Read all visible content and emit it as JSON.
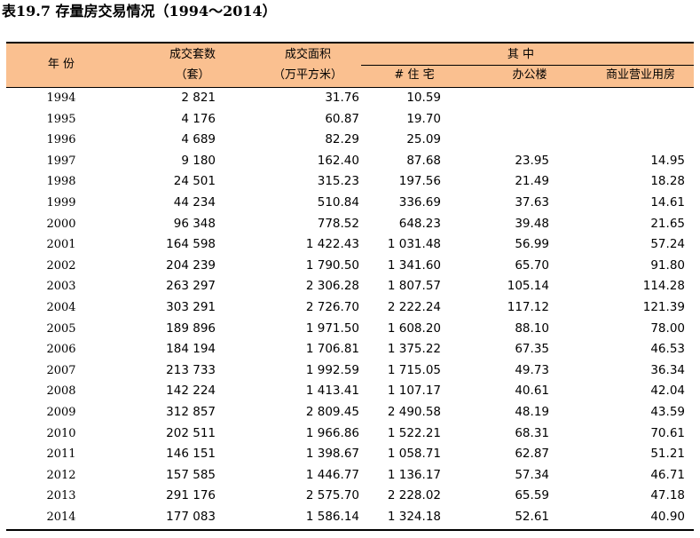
{
  "title": "表19.7  存量房交易情况（1994～2014）",
  "header": {
    "year": "年      份",
    "units_label_1": "成交套数",
    "units_label_2": "（套）",
    "area_label_1": "成交面积",
    "area_label_2": "（万平方米）",
    "group_label": "其      中",
    "residential": "# 住      宅",
    "office": "办公楼",
    "commercial": "商业营业用房"
  },
  "rows": [
    [
      "1994",
      "2 821",
      "31.76",
      "10.59",
      "",
      ""
    ],
    [
      "1995",
      "4 176",
      "60.87",
      "19.70",
      "",
      ""
    ],
    [
      "1996",
      "4 689",
      "82.29",
      "25.09",
      "",
      ""
    ],
    [
      "1997",
      "9 180",
      "162.40",
      "87.68",
      "23.95",
      "14.95"
    ],
    [
      "1998",
      "24 501",
      "315.23",
      "197.56",
      "21.49",
      "18.28"
    ],
    [
      "1999",
      "44 234",
      "510.84",
      "336.69",
      "37.63",
      "14.61"
    ],
    [
      "2000",
      "96 348",
      "778.52",
      "648.23",
      "39.48",
      "21.65"
    ],
    [
      "2001",
      "164 598",
      "1 422.43",
      "1 031.48",
      "56.99",
      "57.24"
    ],
    [
      "2002",
      "204 239",
      "1 790.50",
      "1 341.60",
      "65.70",
      "91.80"
    ],
    [
      "2003",
      "263 297",
      "2 306.28",
      "1 807.57",
      "105.14",
      "114.28"
    ],
    [
      "2004",
      "303 291",
      "2 726.70",
      "2 222.24",
      "117.12",
      "121.39"
    ],
    [
      "2005",
      "189 896",
      "1 971.50",
      "1 608.20",
      "88.10",
      "78.00"
    ],
    [
      "2006",
      "184 194",
      "1 706.81",
      "1 375.22",
      "67.35",
      "46.53"
    ],
    [
      "2007",
      "213 733",
      "1 992.59",
      "1 715.05",
      "49.73",
      "36.34"
    ],
    [
      "2008",
      "142 224",
      "1 413.41",
      "1 107.17",
      "40.61",
      "42.04"
    ],
    [
      "2009",
      "312 857",
      "2 809.45",
      "2 490.58",
      "48.19",
      "43.59"
    ],
    [
      "2010",
      "202 511",
      "1 966.86",
      "1 522.21",
      "68.31",
      "70.61"
    ],
    [
      "2011",
      "146 151",
      "1 398.67",
      "1 058.71",
      "62.87",
      "51.21"
    ],
    [
      "2012",
      "157 585",
      "1 446.77",
      "1 136.17",
      "57.34",
      "46.71"
    ],
    [
      "2013",
      "291 176",
      "2 575.70",
      "2 228.02",
      "65.59",
      "47.18"
    ],
    [
      "2014",
      "177 083",
      "1 586.14",
      "1 324.18",
      "52.61",
      "40.90"
    ]
  ]
}
